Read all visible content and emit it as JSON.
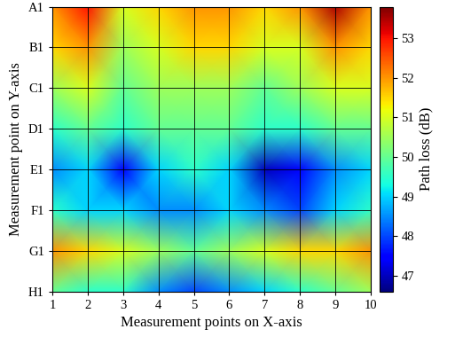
{
  "chart_data": {
    "type": "heatmap",
    "xlabel": "Measurement points on X-axis",
    "ylabel": "Measurement point on Y-axis",
    "x": [
      1,
      2,
      3,
      4,
      5,
      6,
      7,
      8,
      9,
      10
    ],
    "xlim": [
      1,
      10
    ],
    "xticks": [
      1,
      2,
      3,
      4,
      5,
      6,
      7,
      8,
      9,
      10
    ],
    "categories": [
      "A1",
      "B1",
      "C1",
      "D1",
      "E1",
      "F1",
      "G1",
      "H1"
    ],
    "grid": true,
    "cells": [
      [
        52.0,
        53.0,
        51.0,
        51.5,
        52.0,
        52.0,
        51.5,
        52.0,
        53.5,
        52.0
      ],
      [
        51.5,
        52.0,
        50.5,
        51.0,
        51.5,
        51.5,
        51.0,
        51.0,
        52.0,
        51.5
      ],
      [
        50.5,
        51.0,
        50.0,
        50.5,
        50.5,
        50.5,
        50.0,
        50.5,
        51.0,
        51.0
      ],
      [
        49.5,
        50.0,
        49.5,
        50.0,
        50.0,
        50.0,
        49.5,
        49.5,
        50.0,
        50.0
      ],
      [
        48.5,
        49.0,
        47.5,
        49.0,
        49.5,
        49.0,
        47.0,
        47.5,
        48.5,
        49.0
      ],
      [
        49.5,
        49.0,
        49.0,
        48.5,
        48.5,
        49.0,
        48.5,
        48.0,
        49.0,
        49.5
      ],
      [
        52.0,
        51.5,
        51.0,
        50.5,
        50.0,
        50.5,
        51.0,
        51.5,
        51.5,
        52.0
      ],
      [
        50.0,
        49.5,
        49.5,
        48.5,
        48.0,
        48.5,
        49.0,
        49.5,
        50.0,
        50.5
      ]
    ],
    "colorbar": {
      "label": "Path loss (dB)",
      "lim": [
        46.6,
        53.8
      ],
      "ticks": [
        47,
        48,
        49,
        50,
        51,
        52,
        53
      ]
    }
  }
}
